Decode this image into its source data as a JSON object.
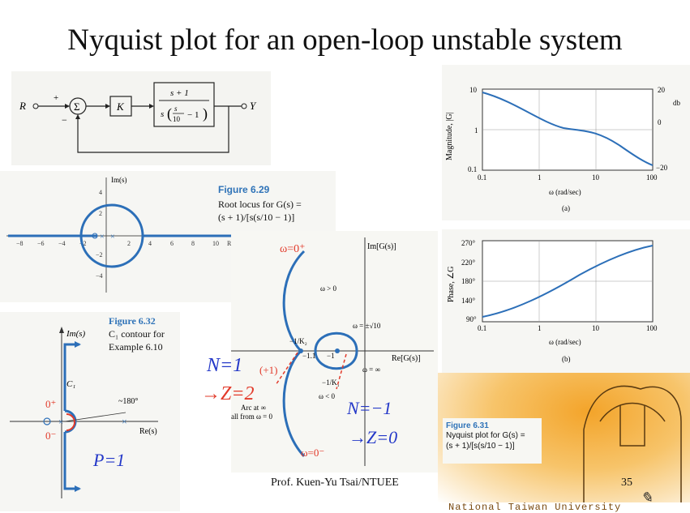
{
  "slide": {
    "title": "Nyquist plot for an open-loop unstable system",
    "footer_author": "Prof. Kuen-Yu Tsai/NTUEE",
    "page_number": "35",
    "university_text": "National Taiwan University"
  },
  "block_diagram": {
    "input": "R",
    "output": "Y",
    "gain": "K",
    "plant_num": "s + 1",
    "plus": "+",
    "minus": "−"
  },
  "root_locus": {
    "fig_label": "Figure 6.29",
    "caption_line1": "Root locus for G(s) =",
    "caption_line2": "(s + 1)/[s(s/10 − 1)]",
    "axis_label": "Im(s)",
    "x_ticks": [
      "−8",
      "−6",
      "−4",
      "−2",
      "2",
      "4",
      "6",
      "8",
      "10"
    ],
    "y_ticks": [
      "4",
      "2",
      "−2",
      "−4"
    ],
    "re_label": "R"
  },
  "contour": {
    "fig_label": "Figure 6.32",
    "caption_line1": "C₁ contour for",
    "caption_line2": "Example 6.10",
    "im_label": "Im(s)",
    "re_label": "Re(s)",
    "c1": "C₁",
    "angle": "~180°",
    "zero_plus": "0⁺",
    "zero_minus": "0⁻",
    "p_note": "P=1"
  },
  "nyquist": {
    "im_label": "Im[G(s)]",
    "re_label": "Re[G(s)]",
    "omega_pos": "ω > 0",
    "omega_neg": "ω < 0",
    "omega_root": "ω = ±√10",
    "omega_inf": "ω = ∞",
    "crit1": "−1/K₁",
    "crit2": "−1/K₂",
    "m11": "−1.1",
    "m1": "−1",
    "arc_line1": "Arc at ∞",
    "arc_line2": "all from ω = 0",
    "hand_w0p": "ω=0⁺",
    "hand_w0m": "ω=0⁻",
    "hand_plus1": "(+1)",
    "n1": "N=1",
    "z2": "→Z=2",
    "n_minus1": "N=−1",
    "z0": "→Z=0"
  },
  "bode_mag": {
    "ylabel": "Magnitude, |G|",
    "xlabel": "ω (rad/sec)",
    "left_ticks": [
      "10",
      "1",
      "0.1"
    ],
    "db_ticks": [
      "20",
      "0",
      "−20"
    ],
    "db_label": "db",
    "x_ticks": [
      "0.1",
      "1",
      "10",
      "100"
    ],
    "sub": "(a)"
  },
  "bode_phase": {
    "ylabel": "Phase, ∠G",
    "xlabel": "ω (rad/sec)",
    "y_ticks": [
      "270°",
      "220°",
      "180°",
      "140°",
      "90°"
    ],
    "x_ticks": [
      "0.1",
      "1",
      "10",
      "100"
    ],
    "sub": "(b)"
  },
  "nyq_fig": {
    "fig_label": "Figure 6.31",
    "caption_line1": "Nyquist plot for G(s) =",
    "caption_line2": "(s + 1)/[s(s/10 − 1)]"
  },
  "colors": {
    "accent_blue": "#2f73b8",
    "curve_blue": "#2c6fb8",
    "hand_red": "#e23a2a",
    "note_blue": "#2438c8",
    "orange": "#f3a42a"
  }
}
